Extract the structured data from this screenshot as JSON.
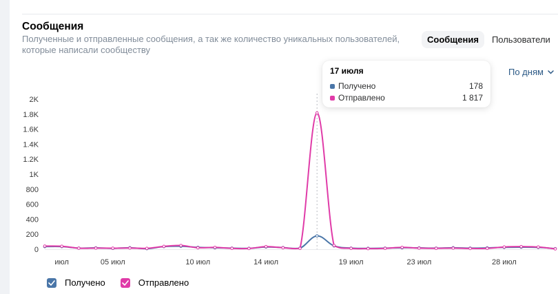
{
  "header": {
    "title": "Сообщения",
    "subtitle": "Полученные и отправленные сообщения, а так же количество уникальных пользователей, которые написали сообществу"
  },
  "tabs": [
    {
      "label": "Сообщения",
      "active": true
    },
    {
      "label": "Пользователи",
      "active": false
    }
  ],
  "period_select": {
    "label": "По дням",
    "icon": "chevron-down-icon"
  },
  "tooltip": {
    "date": "17 июля",
    "rows": [
      {
        "label": "Получено",
        "value": "178",
        "color": "#4a76a8"
      },
      {
        "label": "Отправлено",
        "value": "1 817",
        "color": "#e03ba8"
      }
    ]
  },
  "legend": [
    {
      "label": "Получено",
      "checked": true,
      "color": "#4a76a8"
    },
    {
      "label": "Отправлено",
      "checked": true,
      "color": "#e03ba8"
    }
  ],
  "chart_data": {
    "type": "line",
    "x": [
      1,
      2,
      3,
      4,
      5,
      6,
      7,
      8,
      9,
      10,
      11,
      12,
      13,
      14,
      15,
      16,
      17,
      18,
      19,
      20,
      21,
      22,
      23,
      24,
      25,
      26,
      27,
      28,
      29,
      30,
      31
    ],
    "x_tick_labels": [
      {
        "x": 2,
        "label": "июл"
      },
      {
        "x": 5,
        "label": "05 июл"
      },
      {
        "x": 10,
        "label": "10 июл"
      },
      {
        "x": 14,
        "label": "14 июл"
      },
      {
        "x": 19,
        "label": "19 июл"
      },
      {
        "x": 23,
        "label": "23 июл"
      },
      {
        "x": 28,
        "label": "28 июл"
      }
    ],
    "y_ticks": [
      0,
      200,
      400,
      600,
      800,
      1000,
      1200,
      1400,
      1600,
      1800,
      2000
    ],
    "y_tick_labels": [
      "0",
      "200",
      "400",
      "600",
      "800",
      "1K",
      "1.2K",
      "1.4K",
      "1.6K",
      "1.8K",
      "2K"
    ],
    "ylim": [
      0,
      2000
    ],
    "grid": false,
    "highlight_x": 17,
    "series": [
      {
        "name": "Получено",
        "color": "#4a76a8",
        "values": [
          35,
          35,
          15,
          18,
          12,
          20,
          8,
          35,
          40,
          25,
          20,
          15,
          12,
          30,
          22,
          15,
          178,
          45,
          15,
          12,
          15,
          20,
          18,
          15,
          20,
          15,
          18,
          25,
          28,
          25,
          8
        ]
      },
      {
        "name": "Отправлено",
        "color": "#e03ba8",
        "values": [
          42,
          40,
          14,
          15,
          14,
          16,
          12,
          38,
          50,
          20,
          25,
          12,
          10,
          35,
          20,
          12,
          1817,
          50,
          12,
          8,
          12,
          25,
          15,
          12,
          15,
          10,
          12,
          30,
          35,
          30,
          5
        ]
      }
    ]
  }
}
